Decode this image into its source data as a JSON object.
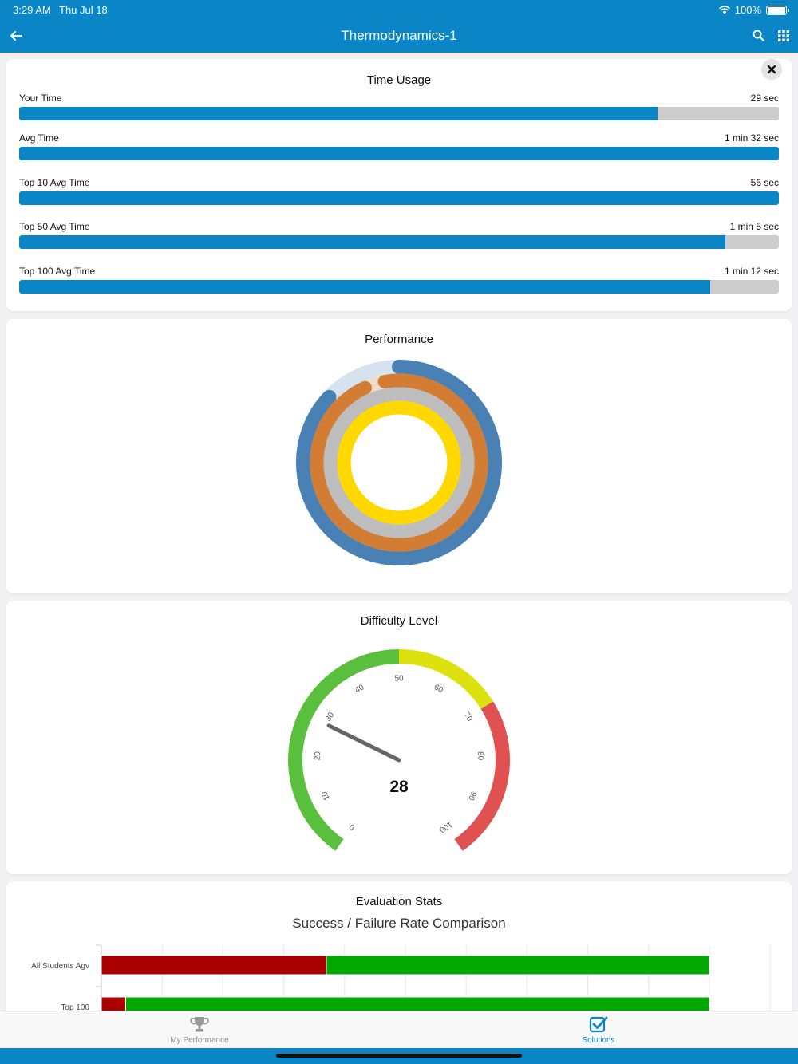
{
  "status": {
    "time": "3:29 AM",
    "date": "Thu Jul 18",
    "battery": "100%"
  },
  "nav": {
    "title": "Thermodynamics-1",
    "back_icon": "arrow-left-icon",
    "search_icon": "search-icon",
    "grid_icon": "grid-icon"
  },
  "time_usage": {
    "title": "Time Usage",
    "rows": [
      {
        "label": "Your Time",
        "value": "29 sec",
        "fraction": 0.84
      },
      {
        "label": "Avg Time",
        "value": "1 min 32 sec",
        "fraction": 1.0
      },
      {
        "label": "Top 10 Avg Time",
        "value": "56 sec",
        "fraction": 1.0
      },
      {
        "label": "Top 50 Avg Time",
        "value": "1 min 5 sec",
        "fraction": 0.93
      },
      {
        "label": "Top 100 Avg Time",
        "value": "1 min 12 sec",
        "fraction": 0.91
      }
    ]
  },
  "performance": {
    "title": "Performance",
    "rings": [
      {
        "color": "#4a81b4",
        "track": "#d6e3ee",
        "fraction": 0.87
      },
      {
        "color": "#d27d33",
        "track": "#f0dcc8",
        "fraction": 0.96
      },
      {
        "color": "#bdbdbd",
        "track": "#bdbdbd",
        "fraction": 1.0
      },
      {
        "color": "#ffd800",
        "track": "#ffd800",
        "fraction": 1.0
      }
    ]
  },
  "difficulty": {
    "title": "Difficulty Level",
    "value": "28",
    "ticks": [
      "0",
      "10",
      "20",
      "30",
      "40",
      "50",
      "60",
      "70",
      "80",
      "90",
      "100"
    ],
    "bands": {
      "green": "#5abf3c",
      "yellow": "#dde20f",
      "red": "#e05252"
    }
  },
  "evaluation": {
    "title": "Evaluation Stats",
    "subtitle": "Success / Failure Rate Comparison",
    "colors": {
      "failure": "#aa0000",
      "success": "#00a800"
    }
  },
  "chart_data": {
    "type": "bar",
    "categories": [
      "All Students Agv",
      "Top 100"
    ],
    "series": [
      {
        "values": [
          37,
          4
        ]
      },
      {
        "values": [
          63,
          96
        ]
      }
    ],
    "title": "Success / Failure Rate Comparison"
  },
  "tabs": [
    {
      "label": "My Performance",
      "icon": "trophy-icon",
      "active": false
    },
    {
      "label": "Solutions",
      "icon": "checkbox-icon",
      "active": true
    }
  ]
}
